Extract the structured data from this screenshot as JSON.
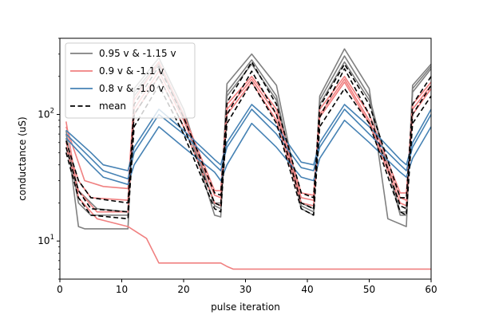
{
  "chart_data": {
    "type": "line",
    "xlabel": "pulse iteration",
    "ylabel": "conductance (uS)",
    "yscale": "log",
    "xlim": [
      0,
      60
    ],
    "ylim": [
      5,
      400
    ],
    "x_ticks": [
      0,
      10,
      20,
      30,
      40,
      50,
      60
    ],
    "y_ticks": [
      {
        "value": 10,
        "base": "10",
        "exp": "1"
      },
      {
        "value": 100,
        "base": "10",
        "exp": "2"
      }
    ],
    "legend": {
      "position": "top-left",
      "entries": [
        {
          "label": "0.95 v & -1.15 v",
          "color": "#808080",
          "dash": false
        },
        {
          "label": "0.9 v & -1.1 v",
          "color": "#f08080",
          "dash": false
        },
        {
          "label": "0.8 v & -1.0 v",
          "color": "#4682b4",
          "dash": false
        },
        {
          "label": "mean",
          "color": "#000000",
          "dash": true
        }
      ]
    },
    "series": [
      {
        "group": "0.95 v & -1.15 v",
        "color": "#808080",
        "dash": false,
        "points": [
          [
            1,
            75
          ],
          [
            3,
            13
          ],
          [
            4,
            12.5
          ],
          [
            11,
            12.5
          ],
          [
            12,
            160
          ],
          [
            16,
            280
          ],
          [
            20,
            110
          ],
          [
            25,
            19
          ],
          [
            26,
            18
          ],
          [
            27,
            175
          ],
          [
            31,
            300
          ],
          [
            35,
            170
          ],
          [
            39,
            19
          ],
          [
            41,
            17
          ],
          [
            42,
            140
          ],
          [
            46,
            330
          ],
          [
            50,
            160
          ],
          [
            53,
            15
          ],
          [
            56,
            13
          ],
          [
            57,
            170
          ],
          [
            60,
            250
          ]
        ]
      },
      {
        "group": "0.95 v & -1.15 v",
        "color": "#808080",
        "dash": false,
        "points": [
          [
            1,
            70
          ],
          [
            3,
            20
          ],
          [
            5,
            16
          ],
          [
            11,
            16
          ],
          [
            12,
            150
          ],
          [
            16,
            260
          ],
          [
            20,
            100
          ],
          [
            25,
            16
          ],
          [
            26,
            15.5
          ],
          [
            27,
            150
          ],
          [
            31,
            270
          ],
          [
            35,
            140
          ],
          [
            39,
            18
          ],
          [
            41,
            16
          ],
          [
            42,
            130
          ],
          [
            46,
            290
          ],
          [
            50,
            140
          ],
          [
            55,
            16
          ],
          [
            56,
            16
          ],
          [
            57,
            160
          ],
          [
            60,
            240
          ]
        ]
      },
      {
        "group": "0.95 v & -1.15 v",
        "color": "#808080",
        "dash": false,
        "points": [
          [
            1,
            65
          ],
          [
            3,
            25
          ],
          [
            6,
            18
          ],
          [
            11,
            17
          ],
          [
            12,
            140
          ],
          [
            16,
            250
          ],
          [
            20,
            95
          ],
          [
            25,
            20
          ],
          [
            26,
            20
          ],
          [
            27,
            140
          ],
          [
            31,
            250
          ],
          [
            35,
            130
          ],
          [
            39,
            20
          ],
          [
            41,
            18
          ],
          [
            42,
            120
          ],
          [
            46,
            260
          ],
          [
            50,
            130
          ],
          [
            55,
            17
          ],
          [
            56,
            17
          ],
          [
            57,
            150
          ],
          [
            60,
            230
          ]
        ]
      },
      {
        "group": "0.9 v & -1.1 v",
        "color": "#f08080",
        "dash": false,
        "points": [
          [
            1,
            80
          ],
          [
            4,
            30
          ],
          [
            7,
            27
          ],
          [
            11,
            26
          ],
          [
            12,
            130
          ],
          [
            16,
            260
          ],
          [
            20,
            100
          ],
          [
            25,
            25
          ],
          [
            26,
            25
          ],
          [
            27,
            120
          ],
          [
            31,
            200
          ],
          [
            35,
            110
          ],
          [
            39,
            24
          ],
          [
            41,
            23
          ],
          [
            42,
            110
          ],
          [
            46,
            200
          ],
          [
            50,
            100
          ],
          [
            55,
            24
          ],
          [
            56,
            24
          ],
          [
            57,
            120
          ],
          [
            60,
            180
          ]
        ]
      },
      {
        "group": "0.9 v & -1.1 v",
        "color": "#f08080",
        "dash": false,
        "points": [
          [
            1,
            60
          ],
          [
            3,
            30
          ],
          [
            5,
            22
          ],
          [
            11,
            21
          ],
          [
            12,
            110
          ],
          [
            16,
            220
          ],
          [
            20,
            90
          ],
          [
            25,
            23
          ],
          [
            26,
            22
          ],
          [
            27,
            110
          ],
          [
            31,
            190
          ],
          [
            35,
            100
          ],
          [
            39,
            22
          ],
          [
            41,
            21
          ],
          [
            42,
            100
          ],
          [
            46,
            190
          ],
          [
            50,
            90
          ],
          [
            55,
            22
          ],
          [
            56,
            21
          ],
          [
            57,
            110
          ],
          [
            60,
            170
          ]
        ]
      },
      {
        "group": "0.9 v & -1.1 v",
        "color": "#f08080",
        "dash": false,
        "points": [
          [
            1,
            55
          ],
          [
            3,
            25
          ],
          [
            6,
            17
          ],
          [
            11,
            17
          ],
          [
            12,
            100
          ],
          [
            16,
            200
          ],
          [
            20,
            80
          ],
          [
            25,
            20
          ],
          [
            26,
            19
          ],
          [
            27,
            100
          ],
          [
            31,
            180
          ],
          [
            35,
            90
          ],
          [
            39,
            20
          ],
          [
            41,
            19
          ],
          [
            42,
            95
          ],
          [
            46,
            180
          ],
          [
            50,
            85
          ],
          [
            55,
            20
          ],
          [
            56,
            19
          ],
          [
            57,
            100
          ],
          [
            60,
            160
          ]
        ]
      },
      {
        "group": "0.9 v & -1.1 v",
        "color": "#f08080",
        "dash": false,
        "points": [
          [
            1,
            88
          ],
          [
            3,
            22
          ],
          [
            6,
            15
          ],
          [
            11,
            13
          ],
          [
            14,
            10.5
          ],
          [
            16,
            6.7
          ],
          [
            26,
            6.7
          ],
          [
            27,
            6.3
          ],
          [
            28,
            6.0
          ],
          [
            60,
            6.0
          ]
        ]
      },
      {
        "group": "0.8 v & -1.0 v",
        "color": "#4682b4",
        "dash": false,
        "points": [
          [
            1,
            75
          ],
          [
            5,
            50
          ],
          [
            7,
            40
          ],
          [
            11,
            36
          ],
          [
            12,
            55
          ],
          [
            16,
            110
          ],
          [
            20,
            75
          ],
          [
            25,
            44
          ],
          [
            26,
            40
          ],
          [
            27,
            60
          ],
          [
            31,
            120
          ],
          [
            35,
            80
          ],
          [
            39,
            42
          ],
          [
            41,
            40
          ],
          [
            42,
            60
          ],
          [
            46,
            120
          ],
          [
            50,
            80
          ],
          [
            55,
            44
          ],
          [
            56,
            40
          ],
          [
            57,
            60
          ],
          [
            60,
            110
          ]
        ]
      },
      {
        "group": "0.8 v & -1.0 v",
        "color": "#4682b4",
        "dash": false,
        "points": [
          [
            1,
            70
          ],
          [
            5,
            45
          ],
          [
            7,
            36
          ],
          [
            11,
            31
          ],
          [
            12,
            50
          ],
          [
            16,
            100
          ],
          [
            20,
            70
          ],
          [
            25,
            40
          ],
          [
            26,
            36
          ],
          [
            27,
            55
          ],
          [
            31,
            110
          ],
          [
            35,
            70
          ],
          [
            39,
            38
          ],
          [
            41,
            36
          ],
          [
            42,
            55
          ],
          [
            46,
            110
          ],
          [
            50,
            70
          ],
          [
            55,
            40
          ],
          [
            56,
            36
          ],
          [
            57,
            55
          ],
          [
            60,
            100
          ]
        ]
      },
      {
        "group": "0.8 v & -1.0 v",
        "color": "#4682b4",
        "dash": false,
        "points": [
          [
            1,
            65
          ],
          [
            5,
            40
          ],
          [
            7,
            32
          ],
          [
            11,
            28
          ],
          [
            12,
            40
          ],
          [
            16,
            80
          ],
          [
            20,
            55
          ],
          [
            25,
            35
          ],
          [
            26,
            30
          ],
          [
            27,
            40
          ],
          [
            31,
            85
          ],
          [
            35,
            55
          ],
          [
            39,
            32
          ],
          [
            41,
            30
          ],
          [
            42,
            45
          ],
          [
            46,
            90
          ],
          [
            50,
            60
          ],
          [
            55,
            35
          ],
          [
            56,
            32
          ],
          [
            57,
            45
          ],
          [
            60,
            80
          ]
        ]
      },
      {
        "group": "mean",
        "color": "#000000",
        "dash": true,
        "points": [
          [
            1,
            62
          ],
          [
            3,
            30
          ],
          [
            5,
            22
          ],
          [
            11,
            20
          ],
          [
            12,
            120
          ],
          [
            16,
            240
          ],
          [
            20,
            95
          ],
          [
            25,
            24
          ],
          [
            26,
            23
          ],
          [
            27,
            125
          ],
          [
            31,
            260
          ],
          [
            35,
            120
          ],
          [
            39,
            24
          ],
          [
            41,
            22
          ],
          [
            42,
            115
          ],
          [
            46,
            250
          ],
          [
            50,
            120
          ],
          [
            55,
            22
          ],
          [
            56,
            22
          ],
          [
            57,
            120
          ],
          [
            60,
            200
          ]
        ]
      },
      {
        "group": "mean",
        "color": "#000000",
        "dash": true,
        "points": [
          [
            1,
            55
          ],
          [
            3,
            25
          ],
          [
            5,
            18
          ],
          [
            11,
            17
          ],
          [
            12,
            100
          ],
          [
            16,
            200
          ],
          [
            20,
            80
          ],
          [
            25,
            20
          ],
          [
            26,
            19
          ],
          [
            27,
            100
          ],
          [
            31,
            220
          ],
          [
            35,
            100
          ],
          [
            39,
            20
          ],
          [
            41,
            18
          ],
          [
            42,
            95
          ],
          [
            46,
            230
          ],
          [
            50,
            100
          ],
          [
            55,
            19
          ],
          [
            56,
            18
          ],
          [
            57,
            100
          ],
          [
            60,
            170
          ]
        ]
      },
      {
        "group": "mean",
        "color": "#000000",
        "dash": true,
        "points": [
          [
            1,
            50
          ],
          [
            3,
            22
          ],
          [
            5,
            16
          ],
          [
            11,
            15
          ],
          [
            12,
            80
          ],
          [
            16,
            170
          ],
          [
            20,
            70
          ],
          [
            25,
            18
          ],
          [
            26,
            17
          ],
          [
            27,
            85
          ],
          [
            31,
            180
          ],
          [
            35,
            85
          ],
          [
            39,
            18
          ],
          [
            41,
            16
          ],
          [
            42,
            80
          ],
          [
            46,
            160
          ],
          [
            50,
            85
          ],
          [
            55,
            17
          ],
          [
            56,
            16
          ],
          [
            57,
            85
          ],
          [
            60,
            140
          ]
        ]
      }
    ]
  }
}
